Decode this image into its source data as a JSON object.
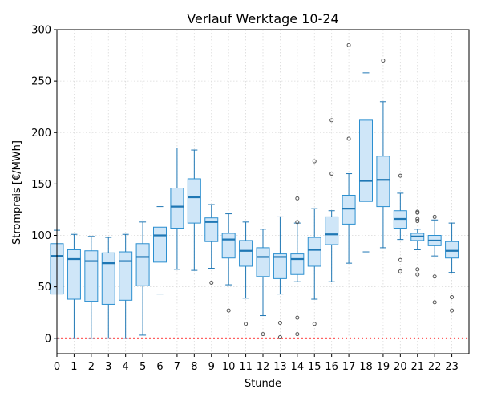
{
  "chart_data": {
    "type": "box",
    "title": "Verlauf Werktage 10-24",
    "xlabel": "Stunde",
    "ylabel": "Strompreis [€/MWh]",
    "categories": [
      "0",
      "1",
      "2",
      "3",
      "4",
      "5",
      "6",
      "7",
      "8",
      "9",
      "10",
      "11",
      "12",
      "13",
      "14",
      "15",
      "16",
      "17",
      "18",
      "19",
      "20",
      "21",
      "22",
      "23"
    ],
    "xlim": [
      0,
      24
    ],
    "ylim": [
      -15,
      300
    ],
    "yticks": [
      0,
      50,
      100,
      150,
      200,
      250,
      300
    ],
    "grid": true,
    "reference_line": {
      "y": 0,
      "color": "#ff0000",
      "style": "dotted"
    },
    "colors": {
      "box_fill": "#cfe6f8",
      "box_edge": "#2b8fd0",
      "median": "#1f77b4",
      "whisker": "#1f77b4",
      "outlier": "#555555",
      "grid": "#d9d9d9"
    },
    "series": [
      {
        "hour": 0,
        "q1": 43,
        "median": 80,
        "q3": 92,
        "whislo": 0,
        "whishi": 105,
        "fliers": []
      },
      {
        "hour": 1,
        "q1": 38,
        "median": 77,
        "q3": 86,
        "whislo": 0,
        "whishi": 101,
        "fliers": []
      },
      {
        "hour": 2,
        "q1": 36,
        "median": 75,
        "q3": 85,
        "whislo": 0,
        "whishi": 99,
        "fliers": []
      },
      {
        "hour": 3,
        "q1": 33,
        "median": 73,
        "q3": 83,
        "whislo": 0,
        "whishi": 98,
        "fliers": []
      },
      {
        "hour": 4,
        "q1": 37,
        "median": 75,
        "q3": 84,
        "whislo": 0,
        "whishi": 101,
        "fliers": []
      },
      {
        "hour": 5,
        "q1": 51,
        "median": 79,
        "q3": 92,
        "whislo": 3,
        "whishi": 113,
        "fliers": []
      },
      {
        "hour": 6,
        "q1": 74,
        "median": 100,
        "q3": 108,
        "whislo": 43,
        "whishi": 128,
        "fliers": []
      },
      {
        "hour": 7,
        "q1": 107,
        "median": 128,
        "q3": 146,
        "whislo": 67,
        "whishi": 185,
        "fliers": []
      },
      {
        "hour": 8,
        "q1": 112,
        "median": 137,
        "q3": 155,
        "whislo": 66,
        "whishi": 183,
        "fliers": []
      },
      {
        "hour": 9,
        "q1": 94,
        "median": 113,
        "q3": 117,
        "whislo": 68,
        "whishi": 130,
        "fliers": [
          54
        ]
      },
      {
        "hour": 10,
        "q1": 78,
        "median": 96,
        "q3": 102,
        "whislo": 52,
        "whishi": 121,
        "fliers": [
          27
        ]
      },
      {
        "hour": 11,
        "q1": 70,
        "median": 85,
        "q3": 95,
        "whislo": 39,
        "whishi": 113,
        "fliers": [
          14
        ]
      },
      {
        "hour": 12,
        "q1": 60,
        "median": 79,
        "q3": 88,
        "whislo": 22,
        "whishi": 106,
        "fliers": [
          4
        ]
      },
      {
        "hour": 13,
        "q1": 58,
        "median": 79,
        "q3": 82,
        "whislo": 43,
        "whishi": 118,
        "fliers": [
          15,
          1
        ]
      },
      {
        "hour": 14,
        "q1": 62,
        "median": 77,
        "q3": 82,
        "whislo": 55,
        "whishi": 112,
        "fliers": [
          136,
          113,
          20,
          4
        ]
      },
      {
        "hour": 15,
        "q1": 70,
        "median": 86,
        "q3": 98,
        "whislo": 38,
        "whishi": 126,
        "fliers": [
          172,
          14
        ]
      },
      {
        "hour": 16,
        "q1": 91,
        "median": 101,
        "q3": 118,
        "whislo": 55,
        "whishi": 124,
        "fliers": [
          212,
          160
        ]
      },
      {
        "hour": 17,
        "q1": 111,
        "median": 126,
        "q3": 139,
        "whislo": 73,
        "whishi": 160,
        "fliers": [
          285,
          194
        ]
      },
      {
        "hour": 18,
        "q1": 133,
        "median": 153,
        "q3": 212,
        "whislo": 84,
        "whishi": 258,
        "fliers": []
      },
      {
        "hour": 19,
        "q1": 128,
        "median": 154,
        "q3": 177,
        "whislo": 88,
        "whishi": 230,
        "fliers": [
          270
        ]
      },
      {
        "hour": 20,
        "q1": 107,
        "median": 116,
        "q3": 124,
        "whislo": 96,
        "whishi": 141,
        "fliers": [
          158,
          76,
          65
        ]
      },
      {
        "hour": 21,
        "q1": 95,
        "median": 99,
        "q3": 102,
        "whislo": 86,
        "whishi": 106,
        "fliers": [
          123,
          122,
          116,
          114,
          67,
          62
        ]
      },
      {
        "hour": 22,
        "q1": 90,
        "median": 95,
        "q3": 100,
        "whislo": 80,
        "whishi": 115,
        "fliers": [
          118,
          60,
          35
        ]
      },
      {
        "hour": 23,
        "q1": 78,
        "median": 85,
        "q3": 94,
        "whislo": 64,
        "whishi": 112,
        "fliers": [
          40,
          27
        ]
      }
    ]
  }
}
